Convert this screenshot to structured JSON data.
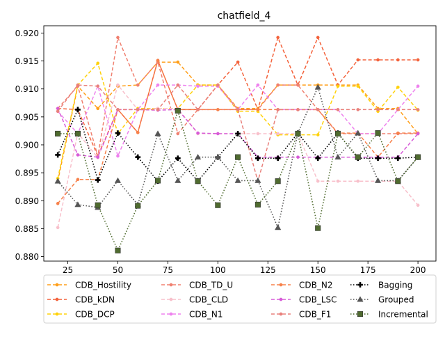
{
  "chart_data": {
    "type": "line",
    "title": "chatfield_4",
    "xlabel": "",
    "ylabel": "",
    "x": [
      20,
      30,
      40,
      50,
      60,
      70,
      80,
      90,
      100,
      110,
      120,
      130,
      140,
      150,
      160,
      170,
      180,
      190,
      200
    ],
    "xlim": [
      13,
      209
    ],
    "ylim": [
      0.8792,
      0.9213
    ],
    "xticks": [
      25,
      50,
      75,
      100,
      125,
      150,
      175,
      200
    ],
    "yticks": [
      0.88,
      0.885,
      0.89,
      0.895,
      0.9,
      0.905,
      0.91,
      0.915,
      0.92
    ],
    "xtick_labels": [
      "25",
      "50",
      "75",
      "100",
      "125",
      "150",
      "175",
      "200"
    ],
    "ytick_labels": [
      "0.880",
      "0.885",
      "0.890",
      "0.895",
      "0.900",
      "0.905",
      "0.910",
      "0.915",
      "0.920"
    ],
    "grid": false,
    "legend_position": "bottom",
    "series": [
      {
        "name": "CDB_Hostility",
        "color": "#ff9f1a",
        "dash": "5,3",
        "marker": "circle",
        "values": [
          0.8935,
          0.9105,
          0.9065,
          0.9105,
          0.9107,
          0.9148,
          0.9148,
          0.9107,
          0.9107,
          0.9065,
          0.9065,
          0.9107,
          0.9107,
          0.9107,
          0.9107,
          0.9107,
          0.9065,
          0.9065,
          0.902
        ]
      },
      {
        "name": "CDB_kDN",
        "color": "#f4623b",
        "dash": "5,3",
        "marker": "circle",
        "values": [
          0.9065,
          0.9063,
          0.898,
          0.9063,
          0.9022,
          0.9151,
          0.9063,
          0.9063,
          0.9107,
          0.9148,
          0.9063,
          0.9192,
          0.9107,
          0.9192,
          0.9107,
          0.9152,
          0.9152,
          0.9152,
          0.9152
        ]
      },
      {
        "name": "CDB_DCP",
        "color": "#ffd20a",
        "dash": "5,3",
        "marker": "circle",
        "values": [
          0.894,
          0.9107,
          0.9146,
          0.902,
          0.9065,
          0.9065,
          0.9065,
          0.9107,
          0.9107,
          0.906,
          0.906,
          0.9018,
          0.9018,
          0.9018,
          0.9105,
          0.9105,
          0.906,
          0.9103,
          0.9062
        ]
      },
      {
        "name": "CDB_TD_U",
        "color": "#f08070",
        "dash": "5,3",
        "marker": "circle",
        "values": [
          0.9065,
          0.9105,
          0.898,
          0.9192,
          0.9107,
          0.9148,
          0.902,
          0.9063,
          0.9063,
          0.9063,
          0.9063,
          0.9107,
          0.9107,
          0.9063,
          0.902,
          0.902,
          0.902,
          0.902,
          0.902
        ]
      },
      {
        "name": "CDB_CLD",
        "color": "#f8c0cb",
        "dash": "5,3",
        "marker": "circle",
        "values": [
          0.8852,
          0.9021,
          0.8977,
          0.9107,
          0.9063,
          0.9065,
          0.9065,
          0.902,
          0.902,
          0.902,
          0.902,
          0.902,
          0.902,
          0.8935,
          0.8935,
          0.8935,
          0.8935,
          0.8935,
          0.8892
        ]
      },
      {
        "name": "CDB_N1",
        "color": "#ee82ee",
        "dash": "5,3",
        "marker": "circle",
        "values": [
          0.906,
          0.902,
          0.9105,
          0.898,
          0.9063,
          0.9107,
          0.9107,
          0.9105,
          0.9105,
          0.9063,
          0.9107,
          0.9063,
          0.9063,
          0.9063,
          0.9063,
          0.902,
          0.902,
          0.9063,
          0.9105
        ]
      },
      {
        "name": "CDB_N2",
        "color": "#f7814a",
        "dash": "5,3",
        "marker": "circle",
        "values": [
          0.8895,
          0.8938,
          0.8938,
          0.9063,
          0.9022,
          0.9151,
          0.9063,
          0.9063,
          0.9063,
          0.9063,
          0.9063,
          0.9063,
          0.9063,
          0.9063,
          0.9021,
          0.9021,
          0.8978,
          0.9021,
          0.9021
        ]
      },
      {
        "name": "CDB_LSC",
        "color": "#d75bd8",
        "dash": "5,3",
        "marker": "circle",
        "values": [
          0.9065,
          0.8982,
          0.8978,
          0.9063,
          0.9063,
          0.9062,
          0.9063,
          0.9021,
          0.902,
          0.902,
          0.8978,
          0.8978,
          0.8978,
          0.8978,
          0.8978,
          0.8978,
          0.8978,
          0.8978,
          0.902
        ]
      },
      {
        "name": "CDB_F1",
        "color": "#e9807b",
        "dash": "5,3",
        "marker": "circle",
        "values": [
          0.906,
          0.9107,
          0.9105,
          0.9063,
          0.9063,
          0.9063,
          0.9107,
          0.9063,
          0.9107,
          0.9063,
          0.8935,
          0.9063,
          0.9063,
          0.9063,
          0.9063,
          0.9063,
          0.9063,
          0.9063,
          0.9063
        ]
      },
      {
        "name": "Bagging",
        "color": "#000000",
        "dash": "1.5,2.5",
        "marker": "plus",
        "values": [
          0.8982,
          0.9063,
          0.8937,
          0.9021,
          0.8978,
          0.8935,
          0.8976,
          0.8935,
          0.8978,
          0.902,
          0.8976,
          0.8976,
          0.9021,
          0.8976,
          0.9021,
          0.8976,
          0.8976,
          0.8976,
          0.8978
        ]
      },
      {
        "name": "Grouped",
        "color": "#555555",
        "dash": "1.5,2.5",
        "marker": "triangle",
        "values": [
          0.8935,
          0.8893,
          0.8888,
          0.8936,
          0.8893,
          0.902,
          0.8936,
          0.8978,
          0.8978,
          0.8936,
          0.8936,
          0.8852,
          0.9021,
          0.9103,
          0.8978,
          0.9021,
          0.8936,
          0.8936,
          0.8978
        ]
      },
      {
        "name": "Incremental",
        "color": "#4f6b2f",
        "dash": "1.5,2.5",
        "marker": "square",
        "values": [
          0.902,
          0.902,
          0.8892,
          0.8811,
          0.8891,
          0.8936,
          0.9061,
          0.8935,
          0.8892,
          0.8978,
          0.8893,
          0.8935,
          0.902,
          0.8851,
          0.902,
          0.8978,
          0.9021,
          0.8935,
          0.8978
        ]
      }
    ]
  }
}
